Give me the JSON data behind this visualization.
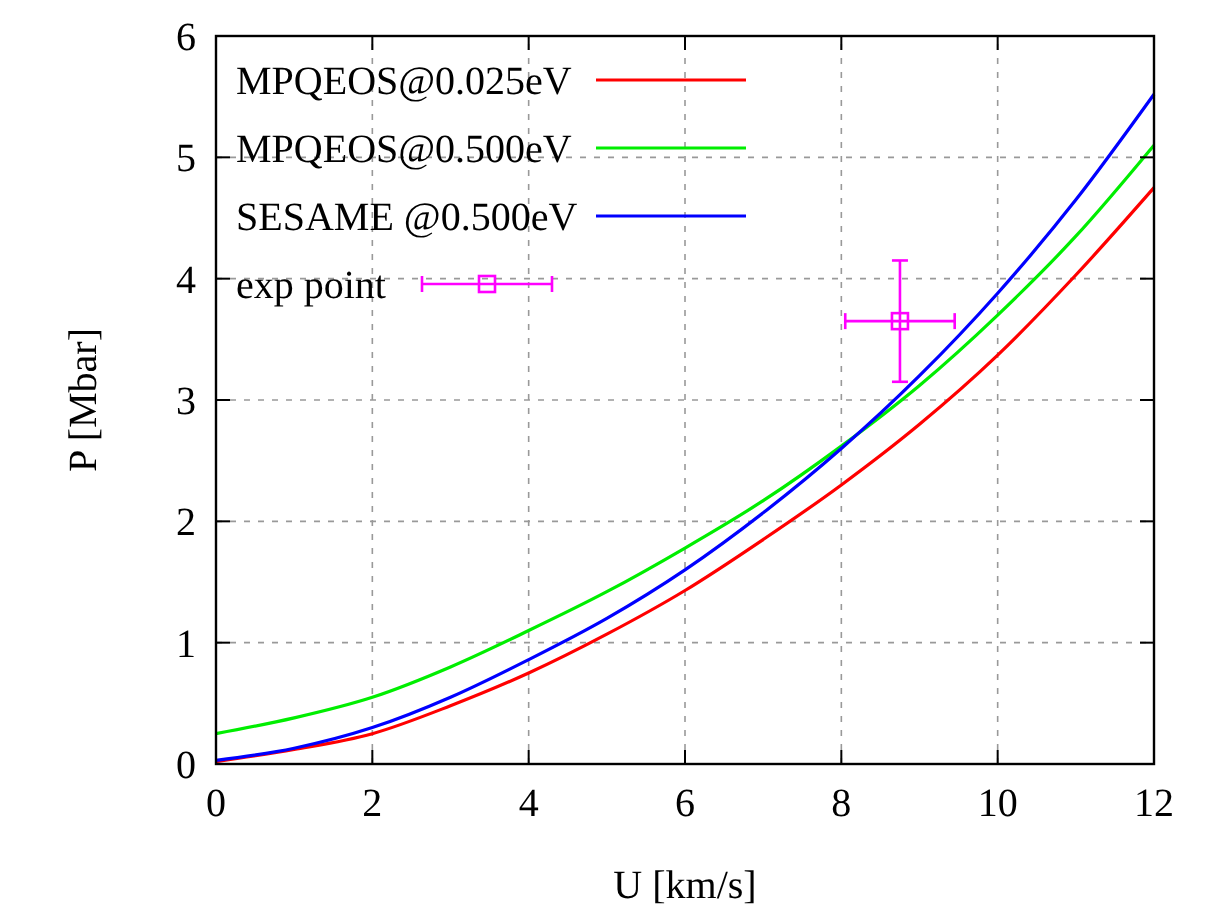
{
  "chart_data": {
    "type": "line",
    "xlabel": "U [km/s]",
    "ylabel": "P [Mbar]",
    "xlim": [
      0,
      12
    ],
    "ylim": [
      0,
      6
    ],
    "xticks": [
      0,
      2,
      4,
      6,
      8,
      10,
      12
    ],
    "yticks": [
      0,
      1,
      2,
      3,
      4,
      5,
      6
    ],
    "grid": true,
    "legend": "top left",
    "line_style": "solid",
    "x": [
      0,
      1,
      2,
      3,
      4,
      5,
      6,
      7,
      8,
      9,
      10,
      11,
      12
    ],
    "series": [
      {
        "name": "MPQEOS@0.025eV",
        "color": "#ff0000",
        "values": [
          0.02,
          0.12,
          0.25,
          0.48,
          0.75,
          1.07,
          1.43,
          1.85,
          2.3,
          2.8,
          3.37,
          4.03,
          4.75
        ]
      },
      {
        "name": "MPQEOS@0.500eV",
        "color": "#00ee00",
        "values": [
          0.25,
          0.38,
          0.55,
          0.8,
          1.1,
          1.42,
          1.78,
          2.17,
          2.62,
          3.12,
          3.7,
          4.35,
          5.1
        ]
      },
      {
        "name": "SESAME @0.500eV",
        "color": "#0000ff",
        "values": [
          0.03,
          0.13,
          0.3,
          0.55,
          0.86,
          1.2,
          1.6,
          2.07,
          2.6,
          3.2,
          3.88,
          4.65,
          5.52
        ]
      },
      {
        "name": "exp point",
        "type": "scatter",
        "marker": "square",
        "color": "#ff00ff",
        "x": [
          8.75
        ],
        "values": [
          3.65
        ],
        "errors": [
          0.5
        ],
        "xerrors": [
          0.7
        ]
      }
    ]
  }
}
